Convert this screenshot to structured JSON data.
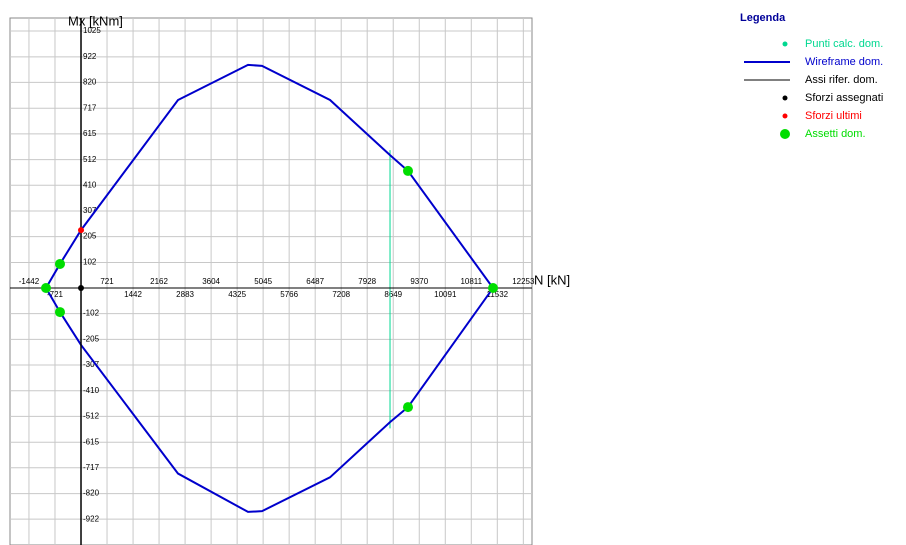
{
  "chart_data": {
    "type": "line",
    "x_label": "N [kN]",
    "y_label": "Mx [kNm]",
    "legend_title": "Legenda",
    "legend": "top-right",
    "grid": true,
    "xlim": [
      -1967,
      12493
    ],
    "ylim": [
      -1025,
      1077
    ],
    "xticks": [
      -1442,
      -721,
      721,
      1442,
      2162,
      2883,
      3604,
      4325,
      5045,
      5766,
      6487,
      7208,
      7928,
      8649,
      9370,
      10091,
      10811,
      11532,
      12253
    ],
    "yticks": [
      -922,
      -820,
      -717,
      -615,
      -512,
      -410,
      -307,
      -205,
      -102,
      102,
      205,
      307,
      410,
      512,
      615,
      717,
      820,
      922,
      1025
    ],
    "series": [
      {
        "name": "Punti calc. dom.",
        "color": "#00d890",
        "marker": "dot",
        "draw": "line",
        "x": [
          8560,
          8560
        ],
        "y": [
          550,
          -560
        ]
      },
      {
        "name": "Wireframe dom.",
        "color": "#0000cc",
        "marker": "line",
        "draw": "line",
        "x": [
          -970,
          -582,
          0,
          2687,
          4626,
          5014,
          6898,
          8560,
          9058,
          11413,
          9058,
          8560,
          6898,
          5014,
          4626,
          2687,
          0,
          -582,
          -970
        ],
        "y": [
          0,
          96,
          231,
          750,
          890,
          886,
          750,
          530,
          467,
          0,
          -475,
          -535,
          -755,
          -890,
          -893,
          -740,
          -227,
          -96,
          0
        ]
      },
      {
        "name": "Assi rifer. dom.",
        "color": "#000000",
        "marker": "line",
        "draw": "axes"
      },
      {
        "name": "Sforzi assegnati",
        "color": "#000000",
        "marker": "dot",
        "draw": "points",
        "size": 3,
        "x": [
          0
        ],
        "y": [
          0
        ]
      },
      {
        "name": "Sforzi ultimi",
        "color": "#ff0000",
        "marker": "dot",
        "draw": "points",
        "size": 3,
        "x": [
          0
        ],
        "y": [
          231
        ]
      },
      {
        "name": "Assetti dom.",
        "color": "#00dd00",
        "marker": "big-dot",
        "draw": "points",
        "size": 5,
        "x": [
          -582,
          -970,
          -582,
          9058,
          9058,
          11413
        ],
        "y": [
          96,
          0,
          -96,
          467,
          -475,
          0
        ]
      }
    ]
  }
}
